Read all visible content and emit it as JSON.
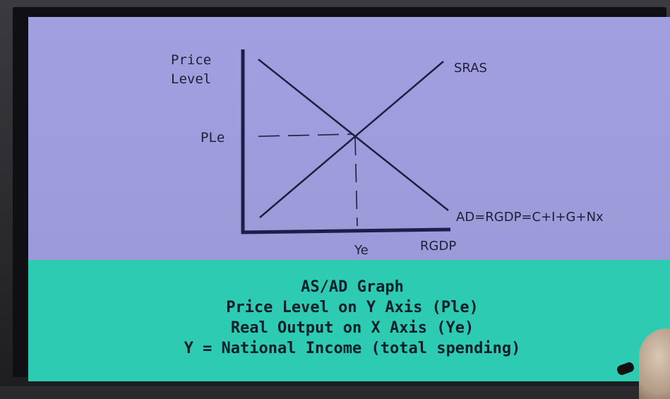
{
  "diagram": {
    "y_axis_label_line1": "Price",
    "y_axis_label_line2": "Level",
    "y_tick_label": "PLe",
    "x_tick_label": "Ye",
    "x_axis_label": "RGDP",
    "supply_curve_label": "SRAS",
    "demand_curve_label": "AD=RGDP=C+I+G+Nx"
  },
  "caption": {
    "line1": "AS/AD Graph",
    "line2": "Price Level on Y Axis (Ple)",
    "line3": "Real Output on X Axis (Ye)",
    "line4": "Y = National Income (total spending)"
  },
  "colors": {
    "graph_background": "#9f9ddd",
    "caption_background": "#2ecbb3",
    "ink": "#1f1f35"
  }
}
